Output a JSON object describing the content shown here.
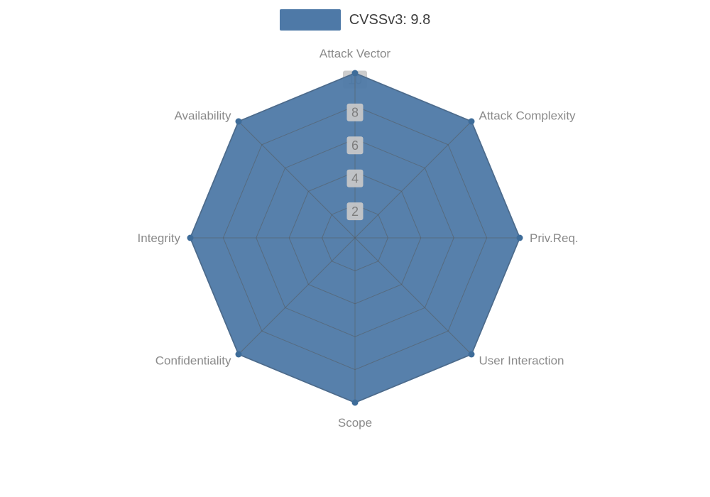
{
  "legend": {
    "label": "CVSSv3: 9.8",
    "swatch_color": "#4e79a7"
  },
  "chart_data": {
    "type": "radar",
    "title": "",
    "axes": [
      "Attack Vector",
      "Attack Complexity",
      "Priv.Req.",
      "User Interaction",
      "Scope",
      "Confidentiality",
      "Integrity",
      "Availability"
    ],
    "series": [
      {
        "name": "CVSSv3: 9.8",
        "values": [
          10,
          10,
          10,
          10,
          10,
          10,
          10,
          10
        ],
        "color": "#4e79a7",
        "marker_color": "#3e6c99"
      }
    ],
    "scale": {
      "min": 0,
      "max": 10,
      "tick_interval": 2,
      "tick_labels": [
        2,
        4,
        6,
        8,
        10
      ]
    },
    "layout": {
      "legend_position": "top-center",
      "grid": true,
      "rings": 5
    },
    "styles": {
      "grid_color": "#555555",
      "axis_label_color": "#8a8a8a",
      "tick_label_color": "#7d7d7d",
      "tick_label_bg": "#c9c9c9",
      "fill_opacity": 0.95
    }
  }
}
